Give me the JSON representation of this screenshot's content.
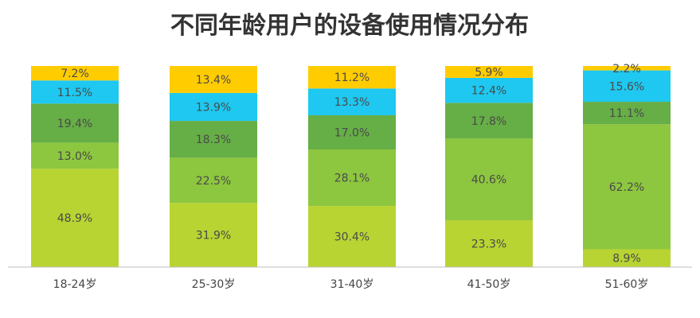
{
  "chart_data": {
    "type": "bar",
    "stacked": true,
    "title": "不同年龄用户的设备使用情况分布",
    "categories": [
      "18-24岁",
      "25-30岁",
      "31-40岁",
      "41-50岁",
      "51-60岁"
    ],
    "series": [
      {
        "color": "#b8d432",
        "values": [
          48.9,
          31.9,
          30.4,
          23.3,
          8.9
        ],
        "labels": [
          "48.9%",
          "31.9%",
          "30.4%",
          "23.3%",
          "8.9%"
        ]
      },
      {
        "color": "#8dc63f",
        "values": [
          13.0,
          22.5,
          28.1,
          40.6,
          62.2
        ],
        "labels": [
          "13.0%",
          "22.5%",
          "28.1%",
          "40.6%",
          "62.2%"
        ]
      },
      {
        "color": "#66ae46",
        "values": [
          19.4,
          18.3,
          17.0,
          17.8,
          11.1
        ],
        "labels": [
          "19.4%",
          "18.3%",
          "17.0%",
          "17.8%",
          "11.1%"
        ]
      },
      {
        "color": "#1ec8f0",
        "values": [
          11.5,
          13.9,
          13.3,
          12.4,
          15.6
        ],
        "labels": [
          "11.5%",
          "13.9%",
          "13.3%",
          "12.4%",
          "15.6%"
        ]
      },
      {
        "color": "#ffcc00",
        "values": [
          7.2,
          13.4,
          11.2,
          5.9,
          2.2
        ],
        "labels": [
          "7.2%",
          "13.4%",
          "11.2%",
          "5.9%",
          "2.2%"
        ]
      }
    ],
    "ylim": [
      0,
      100
    ],
    "grid": false,
    "legend": "none"
  }
}
